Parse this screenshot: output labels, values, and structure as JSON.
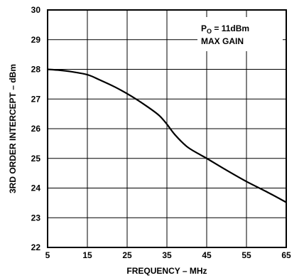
{
  "chart_data": {
    "type": "line",
    "title": "",
    "xlabel": "FREQUENCY – MHz",
    "ylabel": "3RD ORDER INTERCEPT – dBm",
    "xlim": [
      5,
      65
    ],
    "ylim": [
      22,
      30
    ],
    "x_ticks": [
      5,
      15,
      25,
      35,
      45,
      55,
      65
    ],
    "y_ticks": [
      22,
      23,
      24,
      25,
      26,
      27,
      28,
      29,
      30
    ],
    "grid": true,
    "annotation": {
      "line1_main": "P",
      "line1_sub": "O",
      "line1_rest": " = 11dBm",
      "line2": "MAX GAIN",
      "placement": "top-right"
    },
    "series": [
      {
        "x": [
          5,
          8,
          11,
          15,
          18,
          22,
          26,
          30,
          33,
          35,
          37,
          40,
          43,
          45,
          50,
          55,
          60,
          65
        ],
        "y": [
          28.0,
          27.97,
          27.92,
          27.82,
          27.65,
          27.4,
          27.1,
          26.75,
          26.45,
          26.15,
          25.8,
          25.4,
          25.15,
          25.0,
          24.6,
          24.22,
          23.88,
          23.52
        ]
      }
    ]
  }
}
